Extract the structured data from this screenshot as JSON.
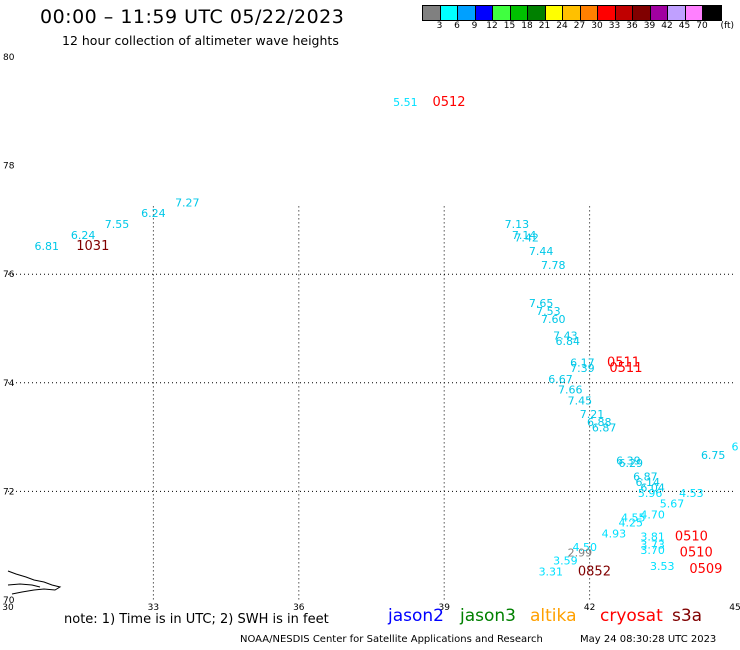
{
  "header": {
    "title": "00:00 – 11:59 UTC 05/22/2023",
    "subtitle": "12 hour collection of altimeter wave heights"
  },
  "colorbar": {
    "unit": "(ft)",
    "bins": [
      {
        "label": "3",
        "color": "#808080"
      },
      {
        "label": "6",
        "color": "#00ffff"
      },
      {
        "label": "9",
        "color": "#00a0ff"
      },
      {
        "label": "12",
        "color": "#0000ff"
      },
      {
        "label": "15",
        "color": "#40ff40"
      },
      {
        "label": "18",
        "color": "#00c000"
      },
      {
        "label": "21",
        "color": "#008000"
      },
      {
        "label": "24",
        "color": "#ffff00"
      },
      {
        "label": "27",
        "color": "#ffc000"
      },
      {
        "label": "30",
        "color": "#ff8000"
      },
      {
        "label": "33",
        "color": "#ff0000"
      },
      {
        "label": "36",
        "color": "#c00000"
      },
      {
        "label": "39",
        "color": "#800000"
      },
      {
        "label": "42",
        "color": "#a000a0"
      },
      {
        "label": "45",
        "color": "#c0a0ff"
      },
      {
        "label": "70",
        "color": "#ff80ff"
      },
      {
        "label": "",
        "color": "#000000"
      }
    ]
  },
  "map": {
    "lon_range": [
      30,
      45
    ],
    "lat_range": [
      70,
      80
    ],
    "x_ticks": [
      {
        "value": 30,
        "label": "30"
      },
      {
        "value": 33,
        "label": "33"
      },
      {
        "value": 36,
        "label": "36"
      },
      {
        "value": 39,
        "label": "39"
      },
      {
        "value": 42,
        "label": "42"
      },
      {
        "value": 45,
        "label": "45"
      }
    ],
    "y_ticks": [
      {
        "value": 70,
        "label": "70"
      },
      {
        "value": 72,
        "label": "72"
      },
      {
        "value": 74,
        "label": "74"
      },
      {
        "value": 76,
        "label": "76"
      },
      {
        "value": 78,
        "label": "78"
      },
      {
        "value": 80,
        "label": "80"
      }
    ],
    "grid_lons": [
      33,
      36,
      39,
      42
    ],
    "grid_lats": [
      72,
      74,
      76
    ],
    "grid": "dotted, partial"
  },
  "chart_data": {
    "type": "scatter",
    "xlabel": "",
    "ylabel": "",
    "xlim": [
      30,
      45
    ],
    "ylim": [
      70,
      80
    ],
    "wave_heights": [
      {
        "lon": 38.2,
        "lat": 79.1,
        "text": "5.51",
        "color": "#00e0ff"
      },
      {
        "lon": 30.8,
        "lat": 76.45,
        "text": "6.81",
        "color": "#00c8e8"
      },
      {
        "lon": 31.55,
        "lat": 76.65,
        "text": "6.24",
        "color": "#00c8e8"
      },
      {
        "lon": 32.25,
        "lat": 76.85,
        "text": "7.55",
        "color": "#00c8e8"
      },
      {
        "lon": 33.0,
        "lat": 77.05,
        "text": "6.24",
        "color": "#00c8e8"
      },
      {
        "lon": 33.7,
        "lat": 77.25,
        "text": "7.27",
        "color": "#00c8e8"
      },
      {
        "lon": 41.4,
        "lat": 74.0,
        "text": "6.67",
        "color": "#00c8e8"
      },
      {
        "lon": 41.6,
        "lat": 73.8,
        "text": "7.66",
        "color": "#00c8e8"
      },
      {
        "lon": 41.8,
        "lat": 73.6,
        "text": "7.45",
        "color": "#00c8e8"
      },
      {
        "lon": 42.05,
        "lat": 73.35,
        "text": "7.21",
        "color": "#00c8e8"
      },
      {
        "lon": 42.2,
        "lat": 73.2,
        "text": "6.88",
        "color": "#00c8e8"
      },
      {
        "lon": 42.3,
        "lat": 73.1,
        "text": "6.87",
        "color": "#00c8e8"
      },
      {
        "lon": 42.8,
        "lat": 72.5,
        "text": "6.39",
        "color": "#00c8e8"
      },
      {
        "lon": 42.85,
        "lat": 72.45,
        "text": "6.29",
        "color": "#00c8e8"
      },
      {
        "lon": 43.15,
        "lat": 72.2,
        "text": "6.87",
        "color": "#00c8e8"
      },
      {
        "lon": 43.2,
        "lat": 72.1,
        "text": "6.14",
        "color": "#00c8e8"
      },
      {
        "lon": 43.3,
        "lat": 72.0,
        "text": "6.04",
        "color": "#00c8e8"
      },
      {
        "lon": 43.25,
        "lat": 71.9,
        "text": "5.96",
        "color": "#00e0ff"
      },
      {
        "lon": 44.1,
        "lat": 71.9,
        "text": "4.53",
        "color": "#00e0ff"
      },
      {
        "lon": 43.7,
        "lat": 71.7,
        "text": "5.67",
        "color": "#00e0ff"
      },
      {
        "lon": 43.3,
        "lat": 71.5,
        "text": "4.70",
        "color": "#00e0ff"
      },
      {
        "lon": 42.9,
        "lat": 71.45,
        "text": "4.55",
        "color": "#00e0ff"
      },
      {
        "lon": 42.85,
        "lat": 71.35,
        "text": "4.25",
        "color": "#00e0ff"
      },
      {
        "lon": 42.5,
        "lat": 71.15,
        "text": "4.93",
        "color": "#00e0ff"
      },
      {
        "lon": 41.9,
        "lat": 70.9,
        "text": "4.50",
        "color": "#00e0ff"
      },
      {
        "lon": 43.3,
        "lat": 71.1,
        "text": "3.81",
        "color": "#00e0ff"
      },
      {
        "lon": 43.3,
        "lat": 70.95,
        "text": "3.73",
        "color": "#00e0ff"
      },
      {
        "lon": 43.3,
        "lat": 70.85,
        "text": "3.70",
        "color": "#00e0ff"
      },
      {
        "lon": 43.5,
        "lat": 70.55,
        "text": "3.53",
        "color": "#00e0ff"
      },
      {
        "lon": 44.55,
        "lat": 72.6,
        "text": "6.75",
        "color": "#00c8e8"
      },
      {
        "lon": 45.0,
        "lat": 72.75,
        "text": "6",
        "color": "#00e0ff"
      },
      {
        "lon": 41.2,
        "lat": 70.45,
        "text": "3.31",
        "color": "#00e0ff"
      },
      {
        "lon": 41.5,
        "lat": 70.65,
        "text": "3.59",
        "color": "#00e0ff"
      },
      {
        "lon": 41.8,
        "lat": 70.8,
        "text": "2.99",
        "color": "#808080"
      },
      {
        "lon": 40.5,
        "lat": 76.85,
        "text": "7.13",
        "color": "#00c8e8"
      },
      {
        "lon": 40.65,
        "lat": 76.65,
        "text": "7.14",
        "color": "#00c8e8"
      },
      {
        "lon": 40.7,
        "lat": 76.6,
        "text": "7.42",
        "color": "#00c8e8"
      },
      {
        "lon": 41.0,
        "lat": 76.35,
        "text": "7.44",
        "color": "#00c8e8"
      },
      {
        "lon": 41.25,
        "lat": 76.1,
        "text": "7.78",
        "color": "#00c8e8"
      },
      {
        "lon": 41.0,
        "lat": 75.4,
        "text": "7.65",
        "color": "#00c8e8"
      },
      {
        "lon": 41.15,
        "lat": 75.25,
        "text": "7.53",
        "color": "#00c8e8"
      },
      {
        "lon": 41.25,
        "lat": 75.1,
        "text": "7.60",
        "color": "#00c8e8"
      },
      {
        "lon": 41.5,
        "lat": 74.8,
        "text": "7.43",
        "color": "#00c8e8"
      },
      {
        "lon": 41.55,
        "lat": 74.7,
        "text": "6.84",
        "color": "#00c8e8"
      },
      {
        "lon": 41.85,
        "lat": 74.3,
        "text": "6.17",
        "color": "#00c8e8"
      },
      {
        "lon": 41.85,
        "lat": 74.2,
        "text": "7.39",
        "color": "#00c8e8"
      }
    ],
    "pass_times": [
      {
        "lon": 39.1,
        "lat": 79.1,
        "text": "0512",
        "color": "#ff0000"
      },
      {
        "lon": 31.75,
        "lat": 76.45,
        "text": "1031",
        "color": "#800000"
      },
      {
        "lon": 42.7,
        "lat": 74.3,
        "text": "0511",
        "color": "#ff0000"
      },
      {
        "lon": 42.75,
        "lat": 74.2,
        "text": "0511",
        "color": "#ff0000"
      },
      {
        "lon": 44.1,
        "lat": 71.1,
        "text": "0510",
        "color": "#ff0000"
      },
      {
        "lon": 44.2,
        "lat": 70.8,
        "text": "0510",
        "color": "#ff0000"
      },
      {
        "lon": 44.4,
        "lat": 70.5,
        "text": "0509",
        "color": "#ff0000"
      },
      {
        "lon": 42.1,
        "lat": 70.45,
        "text": "0852",
        "color": "#800000"
      }
    ]
  },
  "bottom": {
    "note": "note:  1) Time is in UTC;  2) SWH is in feet",
    "legend": [
      {
        "label": "jason2",
        "color": "#0000ff"
      },
      {
        "label": "jason3",
        "color": "#008000"
      },
      {
        "label": "altika",
        "color": "#ffa000"
      },
      {
        "label": "cryosat",
        "color": "#ff0000"
      },
      {
        "label": "s3a",
        "color": "#800000"
      }
    ],
    "credit": "NOAA/NESDIS Center for Satellite Applications and Research",
    "generated": "May 24 08:30:28 UTC 2023"
  }
}
